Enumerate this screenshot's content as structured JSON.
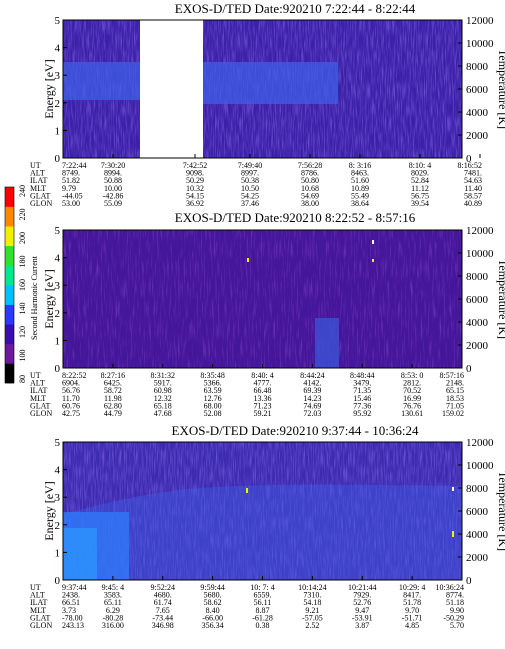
{
  "colorbar": {
    "label": "Second Harmonic Current",
    "ticks": [
      "80",
      "100",
      "120",
      "140",
      "160",
      "180",
      "200",
      "220",
      "240"
    ],
    "colors": [
      "#000000",
      "#6a1a9a",
      "#3a0fb0",
      "#2a3aff",
      "#00c0ff",
      "#00e890",
      "#30e030",
      "#f0f000",
      "#ff8800",
      "#ff0000"
    ]
  },
  "chart_data": [
    {
      "type": "heatmap",
      "title": "EXOS-D/TED   Date:920210  7:22:44 - 8:22:44",
      "ylabel": "Energy [eV]",
      "y2label": "Temperature [K]",
      "ylim": [
        0,
        5
      ],
      "y2lim": [
        0,
        12000
      ],
      "yticks": [
        "0",
        "1",
        "2",
        "3",
        "4",
        "5"
      ],
      "y2ticks": [
        "0",
        "2000",
        "4000",
        "6000",
        "8000",
        "10000",
        "12000"
      ],
      "data_gap": [
        "7:30:20",
        "7:42:52"
      ],
      "table": {
        "labels": [
          "UT",
          "ALT",
          "ILAT",
          "MLT",
          "GLAT",
          "GLON"
        ],
        "columns": [
          [
            "7:22:44",
            "8749.",
            "51.82",
            "9.79",
            "-44.05",
            "53.00"
          ],
          [
            "7:30:20",
            "8994.",
            "50.88",
            "10.00",
            "-42.86",
            "55.09"
          ],
          [
            "7:42:52",
            "9098.",
            "50.29",
            "10.32",
            "54.15",
            "36.92"
          ],
          [
            "7:49:40",
            "8997.",
            "50.38",
            "10.50",
            "54.25",
            "37.46"
          ],
          [
            "7:56:28",
            "8786.",
            "50.80",
            "10.68",
            "54.69",
            "38.00"
          ],
          [
            "8: 3:16",
            "8463.",
            "51.60",
            "10.89",
            "55.49",
            "38.64"
          ],
          [
            "8:10: 4",
            "8029.",
            "52.84",
            "11.12",
            "56.75",
            "39.54"
          ],
          [
            "8:16:52",
            "7481.",
            "54.63",
            "11.40",
            "58.57",
            "40.89"
          ]
        ]
      }
    },
    {
      "type": "heatmap",
      "title": "EXOS-D/TED   Date:920210  8:22:52 - 8:57:16",
      "ylabel": "Energy [eV]",
      "y2label": "Temperature [K]",
      "ylim": [
        0,
        5
      ],
      "y2lim": [
        0,
        12000
      ],
      "yticks": [
        "0",
        "1",
        "2",
        "3",
        "4",
        "5"
      ],
      "y2ticks": [
        "0",
        "2000",
        "4000",
        "6000",
        "8000",
        "10000",
        "12000"
      ],
      "table": {
        "labels": [
          "UT",
          "ALT",
          "ILAT",
          "MLT",
          "GLAT",
          "GLON"
        ],
        "columns": [
          [
            "8:22:52",
            "6904.",
            "56.76",
            "11.70",
            "60.76",
            "42.75"
          ],
          [
            "8:27:16",
            "6425.",
            "58.72",
            "11.98",
            "62.80",
            "44.79"
          ],
          [
            "8:31:32",
            "5917.",
            "60.98",
            "12.32",
            "65.18",
            "47.68"
          ],
          [
            "8:35:48",
            "5366.",
            "63.59",
            "12.76",
            "68.00",
            "52.08"
          ],
          [
            "8:40: 4",
            "4777.",
            "66.48",
            "13.36",
            "71.23",
            "59.21"
          ],
          [
            "8:44:24",
            "4142.",
            "69.39",
            "14.23",
            "74.69",
            "72.03"
          ],
          [
            "8:48:44",
            "3479.",
            "71.35",
            "15.46",
            "77.36",
            "95.92"
          ],
          [
            "8:53: 0",
            "2812.",
            "70.52",
            "16.99",
            "76.76",
            "130.61"
          ],
          [
            "8:57:16",
            "2148.",
            "65.15",
            "18.53",
            "71.05",
            "159.02"
          ]
        ]
      }
    },
    {
      "type": "heatmap",
      "title": "EXOS-D/TED   Date:920210  9:37:44 - 10:36:24",
      "ylabel": "Energy [eV]",
      "y2label": "Temperature [K]",
      "ylim": [
        0,
        5
      ],
      "y2lim": [
        0,
        12000
      ],
      "yticks": [
        "0",
        "1",
        "2",
        "3",
        "4",
        "5"
      ],
      "y2ticks": [
        "0",
        "2000",
        "4000",
        "6000",
        "8000",
        "10000",
        "12000"
      ],
      "table": {
        "labels": [
          "UT",
          "ALT",
          "ILAT",
          "MLT",
          "GLAT",
          "GLON"
        ],
        "columns": [
          [
            "9:37:44",
            "2438.",
            "66.51",
            "3.73",
            "-78.00",
            "243.13"
          ],
          [
            "9:45: 4",
            "3583.",
            "65.11",
            "6.29",
            "-80.28",
            "316.00"
          ],
          [
            "9:52:24",
            "4680.",
            "61.74",
            "7.65",
            "-73.44",
            "346.98"
          ],
          [
            "9:59:44",
            "5680.",
            "58.62",
            "8.40",
            "-66.00",
            "356.34"
          ],
          [
            "10: 7: 4",
            "6559.",
            "56.11",
            "8.87",
            "-61.28",
            "0.38"
          ],
          [
            "10:14:24",
            "7310.",
            "54.18",
            "9.21",
            "-57.05",
            "2.52"
          ],
          [
            "10:21:44",
            "7929.",
            "52.76",
            "9.47",
            "-53.91",
            "3.87"
          ],
          [
            "10:29: 4",
            "8417.",
            "51.78",
            "9.70",
            "-51.71",
            "4.85"
          ],
          [
            "10:36:24",
            "8774.",
            "51.18",
            "9.90",
            "-50.29",
            "5.70"
          ]
        ]
      }
    }
  ]
}
